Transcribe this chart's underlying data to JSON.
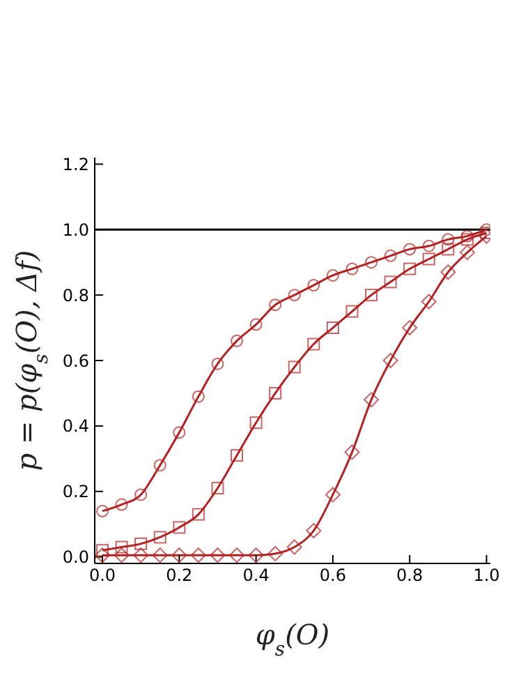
{
  "chart_data": {
    "type": "line",
    "xlabel": "φ$_{s}$(O)",
    "ylabel": "p = p(φ$_{s}$(O), Δf)",
    "x": [
      0,
      0.05,
      0.1,
      0.15,
      0.2,
      0.25,
      0.3,
      0.35,
      0.4,
      0.45,
      0.5,
      0.55,
      0.6,
      0.65,
      0.7,
      0.75,
      0.8,
      0.85,
      0.9,
      0.95,
      1.0
    ],
    "series": [
      {
        "color": "#b22222",
        "marker": "circle",
        "values": [
          0.14,
          0.16,
          0.19,
          0.28,
          0.38,
          0.49,
          0.59,
          0.66,
          0.71,
          0.77,
          0.8,
          0.83,
          0.86,
          0.88,
          0.9,
          0.92,
          0.94,
          0.95,
          0.97,
          0.98,
          1.0
        ]
      },
      {
        "color": "#b22222",
        "marker": "square",
        "values": [
          0.02,
          0.03,
          0.04,
          0.06,
          0.09,
          0.13,
          0.21,
          0.31,
          0.41,
          0.5,
          0.58,
          0.65,
          0.7,
          0.75,
          0.8,
          0.84,
          0.88,
          0.91,
          0.94,
          0.97,
          0.99
        ]
      },
      {
        "color": "#b22222",
        "marker": "diamond",
        "values": [
          0.005,
          0.005,
          0.005,
          0.005,
          0.005,
          0.005,
          0.005,
          0.005,
          0.005,
          0.01,
          0.03,
          0.08,
          0.19,
          0.32,
          0.48,
          0.6,
          0.7,
          0.78,
          0.87,
          0.93,
          0.98
        ]
      }
    ],
    "xlim": [
      -0.02,
      1.01
    ],
    "ylim": [
      -0.02,
      1.22
    ],
    "xticks": [
      {
        "value": 0,
        "label": "0.0"
      },
      {
        "value": 0.2,
        "label": "0.2"
      },
      {
        "value": 0.4,
        "label": "0.4"
      },
      {
        "value": 0.6,
        "label": "0.6"
      },
      {
        "value": 0.8,
        "label": "0.8"
      },
      {
        "value": 1,
        "label": "1.0"
      }
    ],
    "yticks": [
      {
        "value": 0,
        "label": "0.0"
      },
      {
        "value": 0.2,
        "label": "0.2"
      },
      {
        "value": 0.4,
        "label": "0.4"
      },
      {
        "value": 0.6,
        "label": "0.6"
      },
      {
        "value": 0.8,
        "label": "0.8"
      },
      {
        "value": 1,
        "label": "1.0"
      },
      {
        "value": 1.2,
        "label": "1.2"
      }
    ],
    "ref_lines": [
      {
        "axis": "y",
        "value": 1,
        "color": "#000000"
      }
    ],
    "grid": false,
    "legend": false,
    "line_style": "solid"
  }
}
